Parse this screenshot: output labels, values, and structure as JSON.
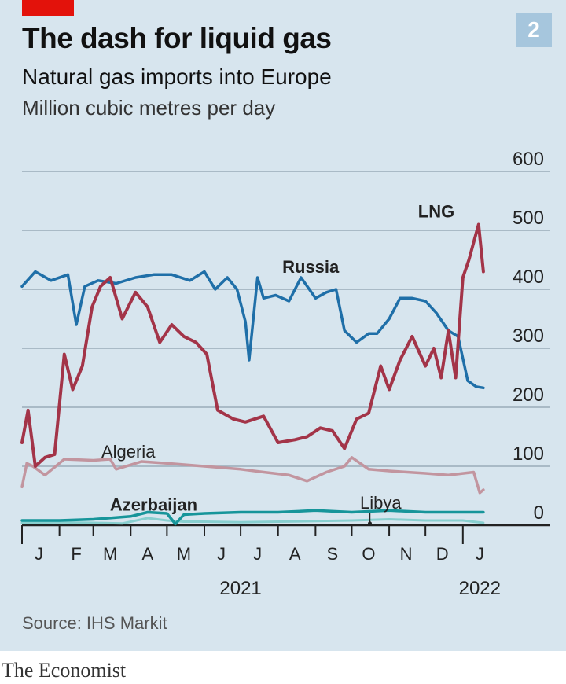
{
  "header": {
    "title": "The dash for liquid gas",
    "subtitle": "Natural gas imports into Europe",
    "units": "Million cubic metres per day",
    "badge": "2"
  },
  "footer": {
    "source": "Source: IHS Markit",
    "brand": "The Economist"
  },
  "colors": {
    "background": "#d7e5ee",
    "accent_red": "#e3120b",
    "russia": "#1f6fa8",
    "lng": "#a33448",
    "algeria": "#c2959f",
    "azerbaijan": "#17959a",
    "libya": "#88cfcf",
    "gridline": "#9aabb8"
  },
  "chart_data": {
    "type": "line",
    "title": "The dash for liquid gas",
    "subtitle": "Natural gas imports into Europe",
    "ylabel": "Million cubic metres per day",
    "ylim": [
      0,
      600
    ],
    "yticks": [
      0,
      100,
      200,
      300,
      400,
      500,
      600
    ],
    "grid": true,
    "y_axis_side": "right",
    "xlim": [
      "2021-01-01",
      "2022-01-20"
    ],
    "months": [
      {
        "label": "J",
        "date": "2021-01-15"
      },
      {
        "label": "F",
        "date": "2021-02-15"
      },
      {
        "label": "M",
        "date": "2021-03-15"
      },
      {
        "label": "A",
        "date": "2021-04-15"
      },
      {
        "label": "M",
        "date": "2021-05-15"
      },
      {
        "label": "J",
        "date": "2021-06-15"
      },
      {
        "label": "J",
        "date": "2021-07-15"
      },
      {
        "label": "A",
        "date": "2021-08-15"
      },
      {
        "label": "S",
        "date": "2021-09-15"
      },
      {
        "label": "O",
        "date": "2021-10-15"
      },
      {
        "label": "N",
        "date": "2021-11-15"
      },
      {
        "label": "D",
        "date": "2021-12-15"
      },
      {
        "label": "J",
        "date": "2022-01-15"
      }
    ],
    "year_labels": [
      {
        "label": "2021",
        "date": "2021-07-01"
      },
      {
        "label": "2022",
        "date": "2022-01-15"
      }
    ],
    "series": [
      {
        "name": "Russia",
        "color": "#1f6fa8",
        "x": [
          "2021-01-01",
          "2021-01-12",
          "2021-01-25",
          "2021-02-08",
          "2021-02-15",
          "2021-02-22",
          "2021-03-05",
          "2021-03-20",
          "2021-04-05",
          "2021-04-20",
          "2021-05-05",
          "2021-05-20",
          "2021-06-01",
          "2021-06-10",
          "2021-06-20",
          "2021-06-28",
          "2021-07-05",
          "2021-07-08",
          "2021-07-15",
          "2021-07-20",
          "2021-07-30",
          "2021-08-10",
          "2021-08-20",
          "2021-09-01",
          "2021-09-10",
          "2021-09-18",
          "2021-09-25",
          "2021-10-05",
          "2021-10-15",
          "2021-10-22",
          "2021-11-01",
          "2021-11-10",
          "2021-11-20",
          "2021-12-01",
          "2021-12-10",
          "2021-12-20",
          "2021-12-28",
          "2022-01-05",
          "2022-01-12",
          "2022-01-18"
        ],
        "values": [
          405,
          430,
          415,
          425,
          340,
          405,
          415,
          410,
          420,
          425,
          425,
          415,
          430,
          400,
          420,
          400,
          345,
          280,
          420,
          385,
          390,
          380,
          420,
          385,
          395,
          400,
          330,
          310,
          325,
          325,
          350,
          385,
          385,
          380,
          360,
          330,
          320,
          245,
          235,
          233
        ]
      },
      {
        "name": "LNG",
        "color": "#a33448",
        "x": [
          "2021-01-01",
          "2021-01-06",
          "2021-01-12",
          "2021-01-20",
          "2021-01-28",
          "2021-02-05",
          "2021-02-12",
          "2021-02-20",
          "2021-02-28",
          "2021-03-07",
          "2021-03-15",
          "2021-03-25",
          "2021-04-05",
          "2021-04-15",
          "2021-04-25",
          "2021-05-05",
          "2021-05-15",
          "2021-05-25",
          "2021-06-03",
          "2021-06-12",
          "2021-06-25",
          "2021-07-05",
          "2021-07-20",
          "2021-08-01",
          "2021-08-15",
          "2021-08-25",
          "2021-09-05",
          "2021-09-15",
          "2021-09-25",
          "2021-10-05",
          "2021-10-15",
          "2021-10-25",
          "2021-11-01",
          "2021-11-10",
          "2021-11-20",
          "2021-12-01",
          "2021-12-08",
          "2021-12-14",
          "2021-12-20",
          "2021-12-26",
          "2022-01-01",
          "2022-01-06",
          "2022-01-10",
          "2022-01-14",
          "2022-01-18"
        ],
        "values": [
          140,
          195,
          100,
          115,
          120,
          290,
          230,
          270,
          370,
          405,
          420,
          350,
          395,
          370,
          310,
          340,
          320,
          310,
          290,
          195,
          180,
          175,
          185,
          140,
          145,
          150,
          165,
          160,
          130,
          180,
          190,
          270,
          230,
          280,
          320,
          270,
          300,
          250,
          330,
          250,
          420,
          450,
          480,
          510,
          430
        ]
      },
      {
        "name": "Algeria",
        "color": "#c2959f",
        "x": [
          "2021-01-01",
          "2021-01-05",
          "2021-01-10",
          "2021-01-20",
          "2021-02-05",
          "2021-03-01",
          "2021-03-15",
          "2021-03-20",
          "2021-04-10",
          "2021-05-01",
          "2021-06-01",
          "2021-07-01",
          "2021-07-20",
          "2021-08-10",
          "2021-08-25",
          "2021-09-10",
          "2021-09-25",
          "2021-10-01",
          "2021-10-15",
          "2021-11-01",
          "2021-12-01",
          "2021-12-20",
          "2022-01-10",
          "2022-01-15",
          "2022-01-18"
        ],
        "values": [
          65,
          105,
          100,
          85,
          112,
          110,
          112,
          95,
          108,
          105,
          100,
          95,
          90,
          85,
          75,
          90,
          100,
          115,
          95,
          92,
          88,
          85,
          90,
          55,
          60
        ]
      },
      {
        "name": "Azerbaijan",
        "color": "#17959a",
        "x": [
          "2021-01-01",
          "2021-02-01",
          "2021-03-01",
          "2021-04-01",
          "2021-04-15",
          "2021-05-01",
          "2021-05-08",
          "2021-05-15",
          "2021-06-01",
          "2021-07-01",
          "2021-08-01",
          "2021-09-01",
          "2021-10-01",
          "2021-11-01",
          "2021-12-01",
          "2022-01-01",
          "2022-01-18"
        ],
        "values": [
          8,
          8,
          10,
          15,
          22,
          20,
          2,
          18,
          20,
          22,
          22,
          25,
          22,
          25,
          22,
          22,
          22
        ]
      },
      {
        "name": "Libya",
        "color": "#88cfcf",
        "x": [
          "2021-01-01",
          "2021-02-01",
          "2021-03-01",
          "2021-03-25",
          "2021-04-15",
          "2021-05-01",
          "2021-05-15",
          "2021-06-01",
          "2021-07-01",
          "2021-08-01",
          "2021-09-01",
          "2021-10-01",
          "2021-11-01",
          "2021-12-01",
          "2022-01-01",
          "2022-01-18"
        ],
        "values": [
          4,
          5,
          4,
          3,
          12,
          8,
          6,
          6,
          5,
          6,
          7,
          8,
          10,
          8,
          8,
          4
        ]
      }
    ],
    "annotations": [
      {
        "text": "Russia",
        "series": "Russia"
      },
      {
        "text": "LNG",
        "series": "LNG"
      },
      {
        "text": "Algeria",
        "series": "Algeria"
      },
      {
        "text": "Azerbaijan",
        "series": "Azerbaijan"
      },
      {
        "text": "Libya",
        "series": "Libya"
      }
    ]
  }
}
